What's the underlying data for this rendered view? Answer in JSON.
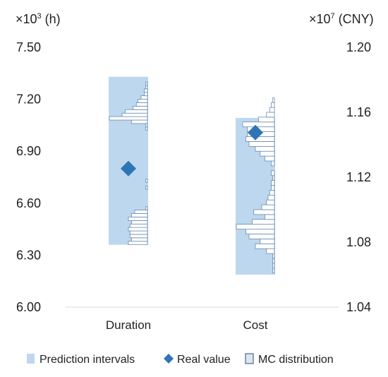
{
  "chart_data": {
    "type": "box",
    "categories": [
      "Duration",
      "Cost"
    ],
    "left_axis": {
      "unit_label_prefix": "×10",
      "unit_label_exp": "3",
      "unit_label_suffix": " (h)",
      "ylim": [
        6.0,
        7.5
      ],
      "ticks": [
        "6.00",
        "6.30",
        "6.60",
        "6.90",
        "7.20",
        "7.50"
      ]
    },
    "right_axis": {
      "unit_label_prefix": "×10",
      "unit_label_exp": "7",
      "unit_label_suffix": " (CNY)",
      "ylim": [
        1.04,
        1.2
      ],
      "ticks": [
        "1.04",
        "1.08",
        "1.12",
        "1.16",
        "1.20"
      ]
    },
    "legend": {
      "position": "bottom",
      "items": [
        {
          "label": "Prediction intervals",
          "symbol": "rect",
          "color": "#bdd7ee"
        },
        {
          "label": "Real value",
          "symbol": "diamond",
          "color": "#2e75b6"
        },
        {
          "label": "MC distribution",
          "symbol": "outlined-rect",
          "color": "#dce6f1"
        }
      ]
    },
    "colors": {
      "interval": "#bdd7ee",
      "marker": "#2e75b6",
      "hist_fill": "#ffffff",
      "hist_stroke": "#5b7fa3",
      "axis": "#d9d9d9"
    },
    "series": [
      {
        "name": "Duration",
        "axis": "left",
        "interval": [
          6.36,
          7.33
        ],
        "real_value": 6.8,
        "mc_distribution": [
          {
            "y0": 6.36,
            "y1": 6.38,
            "count": 12
          },
          {
            "y0": 6.38,
            "y1": 6.4,
            "count": 10
          },
          {
            "y0": 6.4,
            "y1": 6.42,
            "count": 11
          },
          {
            "y0": 6.42,
            "y1": 6.44,
            "count": 11
          },
          {
            "y0": 6.44,
            "y1": 6.46,
            "count": 12
          },
          {
            "y0": 6.46,
            "y1": 6.48,
            "count": 11
          },
          {
            "y0": 6.48,
            "y1": 6.5,
            "count": 10
          },
          {
            "y0": 6.5,
            "y1": 6.52,
            "count": 12
          },
          {
            "y0": 6.52,
            "y1": 6.54,
            "count": 10
          },
          {
            "y0": 6.54,
            "y1": 6.56,
            "count": 8
          },
          {
            "y0": 6.56,
            "y1": 6.58,
            "count": 1
          },
          {
            "y0": 6.68,
            "y1": 6.7,
            "count": 1
          },
          {
            "y0": 6.72,
            "y1": 6.74,
            "count": 1
          },
          {
            "y0": 7.02,
            "y1": 7.04,
            "count": 1
          },
          {
            "y0": 7.04,
            "y1": 7.06,
            "count": 1
          },
          {
            "y0": 7.06,
            "y1": 7.08,
            "count": 10
          },
          {
            "y0": 7.08,
            "y1": 7.1,
            "count": 24
          },
          {
            "y0": 7.1,
            "y1": 7.12,
            "count": 16
          },
          {
            "y0": 7.12,
            "y1": 7.14,
            "count": 14
          },
          {
            "y0": 7.14,
            "y1": 7.16,
            "count": 9
          },
          {
            "y0": 7.16,
            "y1": 7.18,
            "count": 7
          },
          {
            "y0": 7.18,
            "y1": 7.2,
            "count": 6
          },
          {
            "y0": 7.2,
            "y1": 7.22,
            "count": 4
          },
          {
            "y0": 7.22,
            "y1": 7.24,
            "count": 2
          },
          {
            "y0": 7.24,
            "y1": 7.26,
            "count": 2
          },
          {
            "y0": 7.26,
            "y1": 7.28,
            "count": 1
          },
          {
            "y0": 7.28,
            "y1": 7.3,
            "count": 1
          }
        ]
      },
      {
        "name": "Cost",
        "axis": "right",
        "interval": [
          1.06,
          1.1565
        ],
        "real_value": 1.1475,
        "mc_distribution": [
          {
            "y0": 1.061,
            "y1": 1.064,
            "count": 1
          },
          {
            "y0": 1.064,
            "y1": 1.067,
            "count": 1
          },
          {
            "y0": 1.067,
            "y1": 1.07,
            "count": 1
          },
          {
            "y0": 1.07,
            "y1": 1.073,
            "count": 1
          },
          {
            "y0": 1.073,
            "y1": 1.076,
            "count": 5
          },
          {
            "y0": 1.076,
            "y1": 1.079,
            "count": 12
          },
          {
            "y0": 1.079,
            "y1": 1.082,
            "count": 9
          },
          {
            "y0": 1.082,
            "y1": 1.085,
            "count": 16
          },
          {
            "y0": 1.085,
            "y1": 1.088,
            "count": 18
          },
          {
            "y0": 1.088,
            "y1": 1.091,
            "count": 24
          },
          {
            "y0": 1.091,
            "y1": 1.094,
            "count": 14
          },
          {
            "y0": 1.094,
            "y1": 1.097,
            "count": 6
          },
          {
            "y0": 1.097,
            "y1": 1.1,
            "count": 13
          },
          {
            "y0": 1.1,
            "y1": 1.103,
            "count": 8
          },
          {
            "y0": 1.103,
            "y1": 1.106,
            "count": 5
          },
          {
            "y0": 1.106,
            "y1": 1.109,
            "count": 4
          },
          {
            "y0": 1.109,
            "y1": 1.112,
            "count": 3
          },
          {
            "y0": 1.112,
            "y1": 1.115,
            "count": 2
          },
          {
            "y0": 1.115,
            "y1": 1.118,
            "count": 2
          },
          {
            "y0": 1.118,
            "y1": 1.121,
            "count": 1
          },
          {
            "y0": 1.121,
            "y1": 1.124,
            "count": 2
          },
          {
            "y0": 1.127,
            "y1": 1.13,
            "count": 2
          },
          {
            "y0": 1.13,
            "y1": 1.133,
            "count": 6
          },
          {
            "y0": 1.133,
            "y1": 1.136,
            "count": 9
          },
          {
            "y0": 1.136,
            "y1": 1.139,
            "count": 12
          },
          {
            "y0": 1.139,
            "y1": 1.142,
            "count": 16
          },
          {
            "y0": 1.142,
            "y1": 1.145,
            "count": 18
          },
          {
            "y0": 1.145,
            "y1": 1.148,
            "count": 17
          },
          {
            "y0": 1.148,
            "y1": 1.151,
            "count": 17
          },
          {
            "y0": 1.151,
            "y1": 1.154,
            "count": 20
          },
          {
            "y0": 1.154,
            "y1": 1.157,
            "count": 10
          },
          {
            "y0": 1.157,
            "y1": 1.16,
            "count": 5
          },
          {
            "y0": 1.16,
            "y1": 1.163,
            "count": 3
          },
          {
            "y0": 1.163,
            "y1": 1.166,
            "count": 2
          },
          {
            "y0": 1.166,
            "y1": 1.169,
            "count": 1
          }
        ]
      }
    ]
  }
}
